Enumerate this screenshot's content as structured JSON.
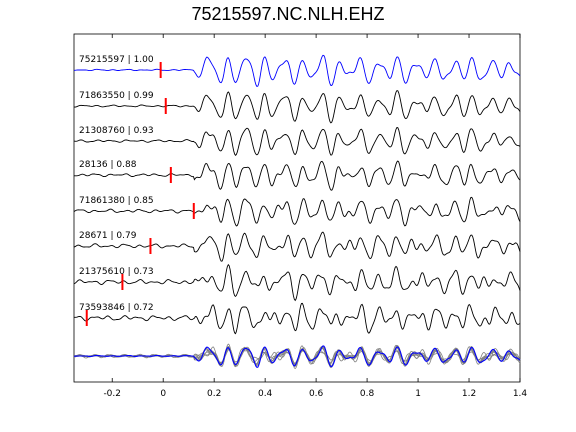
{
  "chart_data": {
    "type": "line",
    "title": "75215597.NC.NLH.EHZ",
    "xlabel": "",
    "ylabel": "",
    "xlim": [
      -0.35,
      1.4
    ],
    "x_ticks": [
      "-0.2",
      "0",
      "0.2",
      "0.4",
      "0.6",
      "0.8",
      "1",
      "1.2",
      "1.4"
    ],
    "x_tick_values": [
      -0.2,
      0,
      0.2,
      0.4,
      0.6,
      0.8,
      1.0,
      1.2,
      1.4
    ],
    "grid": false,
    "reference_color": "#0000ff",
    "trace_color": "#000000",
    "stack_color": "#808080",
    "pick_color": "#ff0000",
    "series": [
      {
        "event_id": "75215597",
        "correlation": "1.00",
        "label": "75215597 | 1.00",
        "pick_time": -0.01,
        "reference": true
      },
      {
        "event_id": "71863550",
        "correlation": "0.99",
        "label": "71863550 | 0.99",
        "pick_time": 0.01
      },
      {
        "event_id": "21308760",
        "correlation": "0.93",
        "label": "21308760 | 0.93",
        "pick_time": null
      },
      {
        "event_id": "28136",
        "correlation": "0.88",
        "label": "28136 | 0.88",
        "pick_time": 0.03
      },
      {
        "event_id": "71861380",
        "correlation": "0.85",
        "label": "71861380 | 0.85",
        "pick_time": 0.12
      },
      {
        "event_id": "28671",
        "correlation": "0.79",
        "label": "28671 | 0.79",
        "pick_time": -0.05
      },
      {
        "event_id": "21375610",
        "correlation": "0.73",
        "label": "21375610 | 0.73",
        "pick_time": -0.16
      },
      {
        "event_id": "73593846",
        "correlation": "0.72",
        "label": "73593846 | 0.72",
        "pick_time": -0.3
      }
    ]
  }
}
